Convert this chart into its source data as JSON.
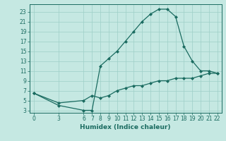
{
  "xlabel": "Humidex (Indice chaleur)",
  "bg_color": "#c5e8e2",
  "grid_color": "#9ecfc7",
  "line_color": "#1a6b60",
  "xlim": [
    -0.5,
    22.5
  ],
  "ylim": [
    2.5,
    24.5
  ],
  "xticks": [
    0,
    3,
    6,
    7,
    8,
    9,
    10,
    11,
    12,
    13,
    14,
    15,
    16,
    17,
    18,
    19,
    20,
    21,
    22
  ],
  "yticks": [
    3,
    5,
    7,
    9,
    11,
    13,
    15,
    17,
    19,
    21,
    23
  ],
  "curve1_x": [
    0,
    3,
    6,
    7,
    8,
    9,
    10,
    11,
    12,
    13,
    14,
    15,
    16,
    17,
    18,
    19,
    20,
    21,
    22
  ],
  "curve1_y": [
    6.5,
    4.0,
    3.0,
    3.0,
    12.0,
    13.5,
    15.0,
    17.0,
    19.0,
    21.0,
    22.5,
    23.5,
    23.5,
    22.0,
    16.0,
    13.0,
    11.0,
    11.0,
    10.5
  ],
  "curve2_x": [
    0,
    3,
    6,
    7,
    8,
    9,
    10,
    11,
    12,
    13,
    14,
    15,
    16,
    17,
    18,
    19,
    20,
    21,
    22
  ],
  "curve2_y": [
    6.5,
    4.5,
    5.0,
    6.0,
    5.5,
    6.0,
    7.0,
    7.5,
    8.0,
    8.0,
    8.5,
    9.0,
    9.0,
    9.5,
    9.5,
    9.5,
    10.0,
    10.5,
    10.5
  ]
}
